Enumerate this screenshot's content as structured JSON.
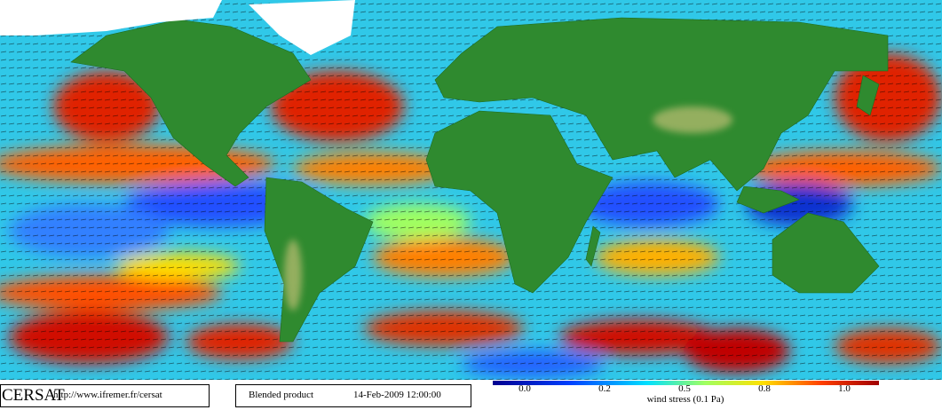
{
  "footer": {
    "logo": "CERSAT",
    "url": "http://www.ifremer.fr/cersat",
    "product": "Blended product",
    "datetime": "14-Feb-2009 12:00:00"
  },
  "colorbar": {
    "ticks": [
      "0.0",
      "0.2",
      "0.5",
      "0.8",
      "1.0"
    ],
    "label": "wind stress (0.1 Pa)"
  }
}
